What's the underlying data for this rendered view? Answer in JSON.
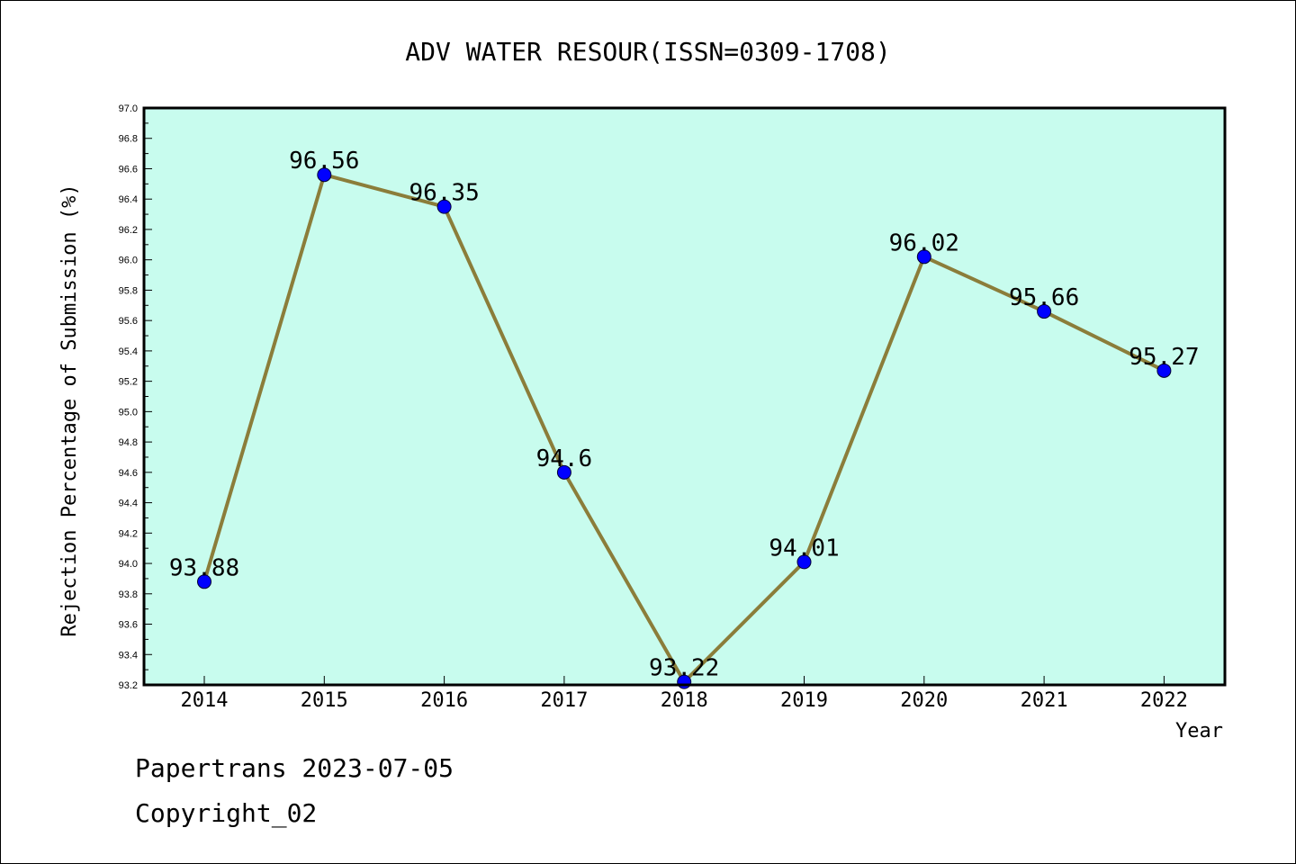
{
  "chart_data": {
    "type": "line",
    "title": "ADV WATER RESOUR(ISSN=0309-1708)",
    "xlabel": "Year",
    "ylabel": "Rejection Percentage of Submission (%)",
    "categories": [
      "2014",
      "2015",
      "2016",
      "2017",
      "2018",
      "2019",
      "2020",
      "2021",
      "2022"
    ],
    "values": [
      93.88,
      96.56,
      96.35,
      94.6,
      93.22,
      94.01,
      96.02,
      95.66,
      95.27
    ],
    "data_labels": [
      "93.88",
      "96.56",
      "96.35",
      "94.6",
      "93.22",
      "94.01",
      "96.02",
      "95.66",
      "95.27"
    ],
    "ylim": [
      93.2,
      97.0
    ],
    "yticks": [
      "93.2",
      "93.4",
      "93.6",
      "93.8",
      "94.0",
      "94.2",
      "94.4",
      "94.6",
      "94.8",
      "95.0",
      "95.2",
      "95.4",
      "95.6",
      "95.8",
      "96.0",
      "96.2",
      "96.4",
      "96.6",
      "96.8",
      "97.0"
    ],
    "grid": false,
    "colors": {
      "plot_background": "#c8fcee",
      "line": "#8b7d3a",
      "marker": "#0000ff"
    }
  },
  "footer": {
    "line1": "Papertrans 2023-07-05",
    "line2": "Copyright_02"
  }
}
